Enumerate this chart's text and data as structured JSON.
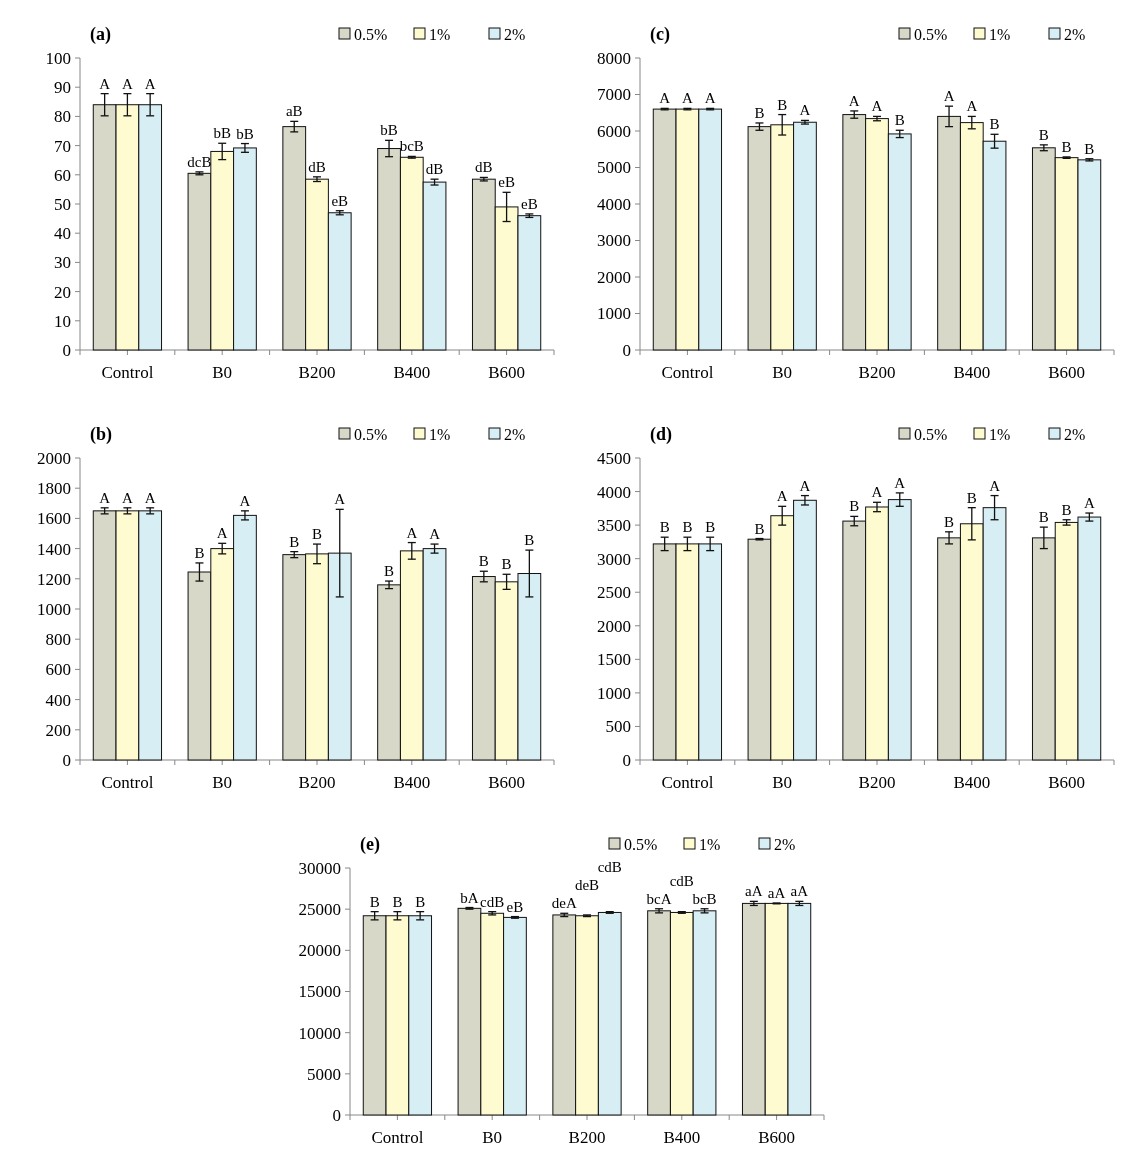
{
  "chart_data": [
    {
      "type": "bar",
      "title": "(a)",
      "categories": [
        "Control",
        "B0",
        "B200",
        "B400",
        "B600"
      ],
      "ylim": [
        0,
        100
      ],
      "yticks": [
        0,
        10,
        20,
        30,
        40,
        50,
        60,
        70,
        80,
        90,
        100
      ],
      "legend": "top right",
      "series": [
        {
          "name": "0.5%",
          "color": "#d8d8c8",
          "values": [
            84,
            60.5,
            76.5,
            69,
            58.5
          ],
          "errors": [
            3.8,
            0.5,
            1.8,
            2.8,
            0.6
          ],
          "value_labels": [
            "A",
            "dcB",
            "aB",
            "bB",
            "dB"
          ]
        },
        {
          "name": "1%",
          "color": "#fffbd0",
          "values": [
            84,
            68,
            58.5,
            66,
            49
          ],
          "errors": [
            3.8,
            2.8,
            0.8,
            0.3,
            5
          ],
          "value_labels": [
            "A",
            "bB",
            "dB",
            "bcB",
            "eB"
          ]
        },
        {
          "name": "2%",
          "color": "#d6eef4",
          "values": [
            84,
            69.2,
            47,
            57.5,
            46
          ],
          "errors": [
            3.8,
            1.5,
            0.7,
            1,
            0.6
          ],
          "value_labels": [
            "A",
            "bB",
            "eB",
            "dB",
            "eB"
          ]
        }
      ]
    },
    {
      "type": "bar",
      "title": "(c)",
      "categories": [
        "Control",
        "B0",
        "B200",
        "B400",
        "B600"
      ],
      "ylim": [
        0,
        8000
      ],
      "yticks": [
        0,
        1000,
        2000,
        3000,
        4000,
        5000,
        6000,
        7000,
        8000
      ],
      "legend": "top right",
      "series": [
        {
          "name": "0.5%",
          "color": "#d8d8c8",
          "values": [
            6600,
            6120,
            6450,
            6400,
            5540
          ],
          "errors": [
            20,
            100,
            100,
            280,
            80
          ],
          "value_labels": [
            "A",
            "B",
            "A",
            "A",
            "B"
          ]
        },
        {
          "name": "1%",
          "color": "#fffbd0",
          "values": [
            6600,
            6170,
            6340,
            6230,
            5270
          ],
          "errors": [
            20,
            280,
            60,
            170,
            20
          ],
          "value_labels": [
            "A",
            "B",
            "A",
            "A",
            "B"
          ]
        },
        {
          "name": "2%",
          "color": "#d6eef4",
          "values": [
            6600,
            6240,
            5920,
            5720,
            5210
          ],
          "errors": [
            20,
            50,
            100,
            190,
            30
          ],
          "value_labels": [
            "A",
            "A",
            "B",
            "B",
            "B"
          ]
        }
      ]
    },
    {
      "type": "bar",
      "title": "(b)",
      "categories": [
        "Control",
        "B0",
        "B200",
        "B400",
        "B600"
      ],
      "ylim": [
        0,
        2000
      ],
      "yticks": [
        0,
        200,
        400,
        600,
        800,
        1000,
        1200,
        1400,
        1600,
        1800,
        2000
      ],
      "legend": "top right",
      "series": [
        {
          "name": "0.5%",
          "color": "#d8d8c8",
          "values": [
            1650,
            1245,
            1360,
            1160,
            1215
          ],
          "errors": [
            20,
            60,
            20,
            25,
            35
          ],
          "value_labels": [
            "A",
            "B",
            "B",
            "B",
            "B"
          ]
        },
        {
          "name": "1%",
          "color": "#fffbd0",
          "values": [
            1650,
            1400,
            1365,
            1385,
            1180
          ],
          "errors": [
            20,
            35,
            65,
            55,
            50
          ],
          "value_labels": [
            "A",
            "A",
            "B",
            "A",
            "B"
          ]
        },
        {
          "name": "2%",
          "color": "#d6eef4",
          "values": [
            1650,
            1620,
            1370,
            1400,
            1235
          ],
          "errors": [
            20,
            30,
            290,
            30,
            155
          ],
          "value_labels": [
            "A",
            "A",
            "A",
            "A",
            "B"
          ]
        }
      ]
    },
    {
      "type": "bar",
      "title": "(d)",
      "categories": [
        "Control",
        "B0",
        "B200",
        "B400",
        "B600"
      ],
      "ylim": [
        0,
        4500
      ],
      "yticks": [
        0,
        500,
        1000,
        1500,
        2000,
        2500,
        3000,
        3500,
        4000,
        4500
      ],
      "legend": "top right",
      "series": [
        {
          "name": "0.5%",
          "color": "#d8d8c8",
          "values": [
            3220,
            3290,
            3560,
            3310,
            3310
          ],
          "errors": [
            100,
            10,
            70,
            90,
            160
          ],
          "value_labels": [
            "B",
            "B",
            "B",
            "B",
            "B"
          ]
        },
        {
          "name": "1%",
          "color": "#fffbd0",
          "values": [
            3220,
            3640,
            3770,
            3520,
            3540
          ],
          "errors": [
            100,
            140,
            70,
            240,
            40
          ],
          "value_labels": [
            "B",
            "A",
            "A",
            "B",
            "B"
          ]
        },
        {
          "name": "2%",
          "color": "#d6eef4",
          "values": [
            3220,
            3870,
            3880,
            3760,
            3620
          ],
          "errors": [
            100,
            70,
            100,
            180,
            60
          ],
          "value_labels": [
            "B",
            "A",
            "A",
            "A",
            "A"
          ]
        }
      ]
    },
    {
      "type": "bar",
      "title": "(e)",
      "categories": [
        "Control",
        "B0",
        "B200",
        "B400",
        "B600"
      ],
      "ylim": [
        0,
        30000
      ],
      "yticks": [
        0,
        5000,
        10000,
        15000,
        20000,
        25000,
        30000
      ],
      "legend": "top right",
      "series": [
        {
          "name": "0.5%",
          "color": "#d8d8c8",
          "values": [
            24200,
            25100,
            24300,
            24800,
            25700
          ],
          "errors": [
            500,
            100,
            200,
            250,
            250
          ],
          "value_labels": [
            "B",
            "bA",
            "deA",
            "bcA",
            "aA"
          ]
        },
        {
          "name": "1%",
          "color": "#fffbd0",
          "values": [
            24200,
            24500,
            24200,
            24600,
            25700
          ],
          "errors": [
            500,
            200,
            100,
            100,
            50
          ],
          "value_labels": [
            "B",
            "cdB",
            "deB",
            "cdB",
            "aA"
          ]
        },
        {
          "name": "2%",
          "color": "#d6eef4",
          "values": [
            24200,
            24000,
            24600,
            24800,
            25700
          ],
          "errors": [
            500,
            100,
            100,
            250,
            250
          ],
          "value_labels": [
            "B",
            "eB",
            "cdB",
            "bcB",
            "aA"
          ]
        }
      ]
    }
  ]
}
